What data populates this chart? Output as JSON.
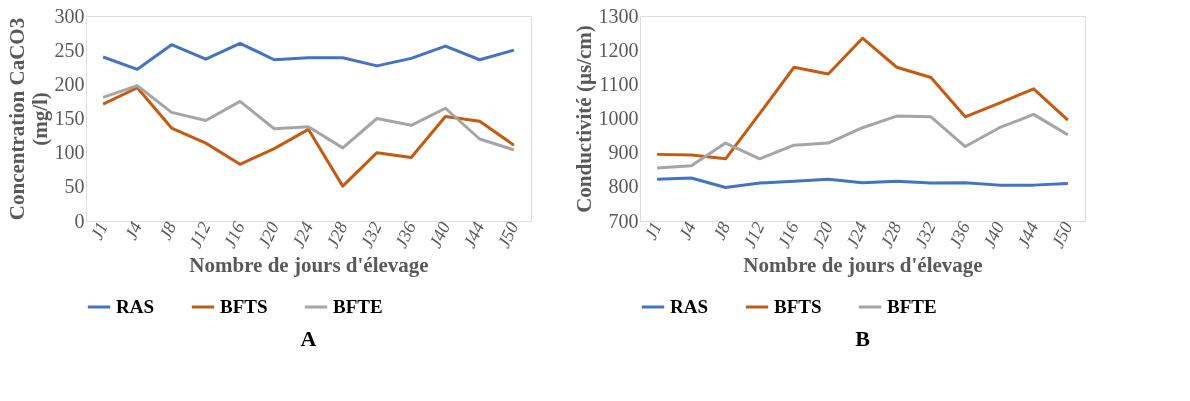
{
  "chart_data": [
    {
      "type": "line",
      "xlabel": "Nombre de jours d'élevage",
      "ylabel": "Concentration CaCO3\n(mg/l)",
      "categories": [
        "J1",
        "J4",
        "J8",
        "J12",
        "J16",
        "J20",
        "J24",
        "J28",
        "J32",
        "J36",
        "J40",
        "J44",
        "J50"
      ],
      "ylim": [
        0,
        300
      ],
      "yticks": [
        0,
        50,
        100,
        150,
        200,
        250,
        300
      ],
      "grid": false,
      "legend": "bottom",
      "annotations": [
        "A"
      ],
      "series": [
        {
          "name": "RAS",
          "color": "#4472c4",
          "values": [
            240,
            222,
            258,
            237,
            260,
            236,
            239,
            239,
            227,
            238,
            256,
            236,
            250
          ]
        },
        {
          "name": "BFTS",
          "color": "#c55a11",
          "values": [
            171,
            195,
            136,
            114,
            83,
            106,
            134,
            51,
            100,
            93,
            153,
            146,
            111
          ]
        },
        {
          "name": "BFTE",
          "color": "#a5a5a5",
          "values": [
            181,
            198,
            159,
            147,
            175,
            135,
            138,
            107,
            150,
            140,
            165,
            120,
            104
          ]
        }
      ]
    },
    {
      "type": "line",
      "xlabel": "Nombre de jours d'élevage",
      "ylabel": "Conductivité (µs/cm)",
      "categories": [
        "J1",
        "J4",
        "J8",
        "J12",
        "J16",
        "J20",
        "J24",
        "J28",
        "J32",
        "J36",
        "J40",
        "J44",
        "J50"
      ],
      "ylim": [
        700,
        1300
      ],
      "yticks": [
        700,
        800,
        900,
        1000,
        1100,
        1200,
        1300
      ],
      "grid": false,
      "legend": "bottom",
      "annotations": [
        "B"
      ],
      "series": [
        {
          "name": "RAS",
          "color": "#4472c4",
          "values": [
            822,
            826,
            798,
            811,
            816,
            822,
            812,
            816,
            811,
            812,
            805,
            805,
            810
          ]
        },
        {
          "name": "BFTS",
          "color": "#c55a11",
          "values": [
            895,
            893,
            882,
            1015,
            1150,
            1130,
            1235,
            1150,
            1120,
            1005,
            1045,
            1087,
            995
          ]
        },
        {
          "name": "BFTE",
          "color": "#a5a5a5",
          "values": [
            855,
            862,
            928,
            882,
            922,
            928,
            973,
            1007,
            1005,
            918,
            973,
            1012,
            952
          ]
        }
      ]
    }
  ]
}
